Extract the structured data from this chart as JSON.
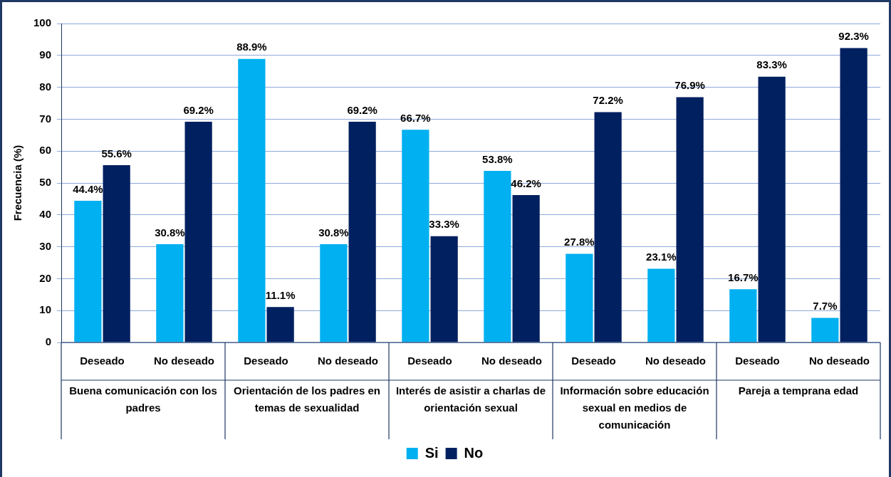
{
  "chart_data": {
    "type": "bar",
    "ylabel": "Frecuencia (%)",
    "categories": [
      "Deseado",
      "No deseado",
      "Deseado",
      "No deseado",
      "Deseado",
      "No deseado",
      "Deseado",
      "No deseado",
      "Deseado",
      "No deseado"
    ],
    "annotations": [
      "Buena comunicación con los padres",
      "Orientación de los padres en temas de sexualidad",
      "Interés de asistir a charlas de orientación sexual",
      "Información sobre educación sexual en medios de comunicación",
      "Pareja a temprana edad"
    ],
    "series": [
      {
        "name": "Si",
        "color": "#00b0f0",
        "values": [
          44.4,
          30.8,
          88.9,
          30.8,
          66.7,
          53.8,
          27.8,
          23.1,
          16.7,
          7.7
        ],
        "value_labels": [
          "44.4%",
          "30.8%",
          "88.9%",
          "30.8%",
          "66.7%",
          "53.8%",
          "27.8%",
          "23.1%",
          "16.7%",
          "7.7%"
        ]
      },
      {
        "name": "No",
        "color": "#002060",
        "values": [
          55.6,
          69.2,
          11.1,
          69.2,
          33.3,
          46.2,
          72.2,
          76.9,
          83.3,
          92.3
        ],
        "value_labels": [
          "55.6%",
          "69.2%",
          "11.1%",
          "69.2%",
          "33.3%",
          "46.2%",
          "72.2%",
          "76.9%",
          "83.3%",
          "92.3%"
        ]
      }
    ],
    "ylim": [
      0,
      100
    ],
    "yticks": [
      0,
      10,
      20,
      30,
      40,
      50,
      60,
      70,
      80,
      90,
      100
    ],
    "grid": "y",
    "legend": "bottom"
  }
}
